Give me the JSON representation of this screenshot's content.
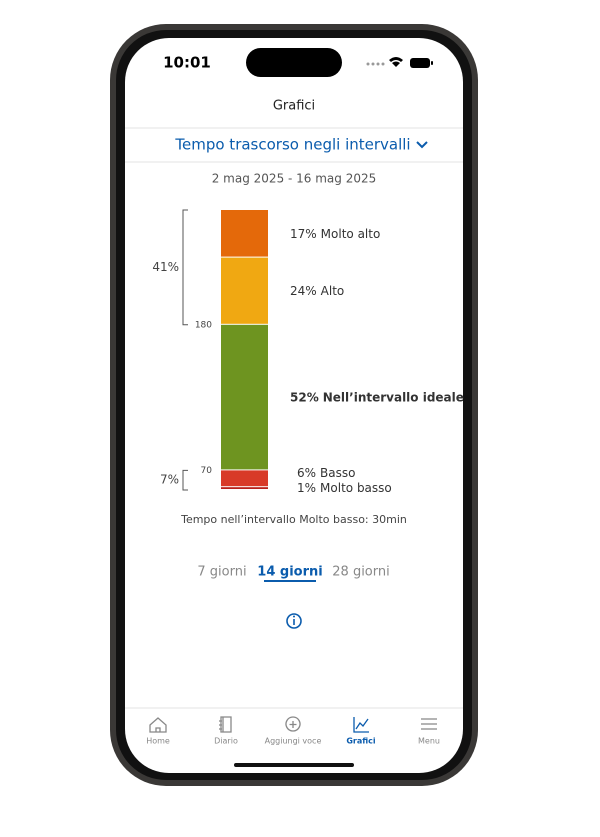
{
  "status_bar": {
    "time": "10:01"
  },
  "header": {
    "title": "Grafici"
  },
  "selector": {
    "label": "Tempo trascorso negli intervalli"
  },
  "date_range": "2 mag 2025 - 16 mag 2025",
  "chart_data": {
    "type": "stacked-bar",
    "categories": [
      "Molto alto",
      "Alto",
      "Nell’intervallo ideale",
      "Basso",
      "Molto basso"
    ],
    "values": [
      17,
      24,
      52,
      6,
      1
    ],
    "value_labels": [
      "17%",
      "24%",
      "52%",
      "6%",
      "1%"
    ],
    "colors": [
      "#e4690a",
      "#f0a812",
      "#6e9420",
      "#d83a28",
      "#b8201a"
    ],
    "thresholds": [
      180,
      70
    ],
    "groups": [
      {
        "value": 41,
        "label": "41%"
      },
      {
        "value": 7,
        "label": "7%"
      }
    ]
  },
  "note": "Tempo nell’intervallo Molto basso: 30min",
  "tabs": [
    "7 giorni",
    "14 giorni",
    "28 giorni"
  ],
  "nav": [
    "Home",
    "Diario",
    "Aggiungi voce",
    "Grafici",
    "Menu"
  ]
}
